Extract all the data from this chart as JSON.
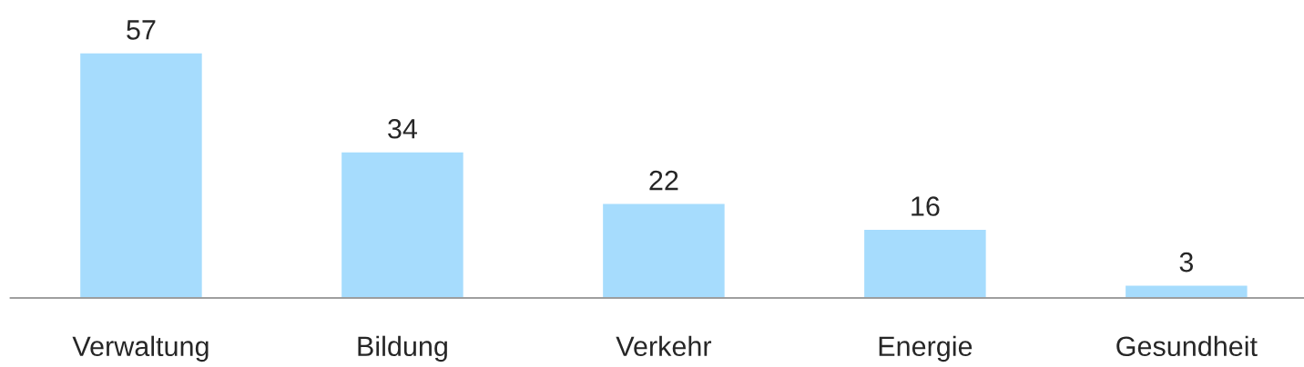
{
  "chart_data": {
    "type": "bar",
    "categories": [
      "Verwaltung",
      "Bildung",
      "Verkehr",
      "Energie",
      "Gesundheit"
    ],
    "values": [
      57,
      34,
      22,
      16,
      3
    ],
    "color": "#a6dcfd",
    "data_labels": true,
    "grid": false,
    "legend": false
  }
}
